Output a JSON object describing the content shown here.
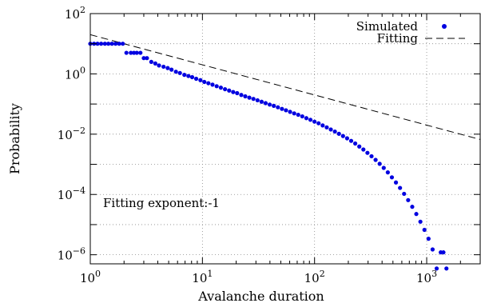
{
  "chart_data": {
    "type": "scatter",
    "title": "",
    "xlabel": "Avalanche duration",
    "ylabel": "Probability",
    "xscale": "log",
    "yscale": "log",
    "xlim": [
      1,
      3000
    ],
    "ylim": [
      5e-07,
      100
    ],
    "grid": true,
    "legend_position": "top-right",
    "x_ticks": [
      {
        "value": 1,
        "base": "10",
        "exp": "0"
      },
      {
        "value": 10,
        "base": "10",
        "exp": "1"
      },
      {
        "value": 100,
        "base": "10",
        "exp": "2"
      },
      {
        "value": 1000,
        "base": "10",
        "exp": "3"
      }
    ],
    "y_ticks": [
      {
        "value": 100,
        "base": "10",
        "exp": "2"
      },
      {
        "value": 1,
        "base": "10",
        "exp": "0"
      },
      {
        "value": 0.01,
        "base": "10",
        "exp": "−2"
      },
      {
        "value": 0.0001,
        "base": "10",
        "exp": "−4"
      },
      {
        "value": 1e-06,
        "base": "10",
        "exp": "−6"
      }
    ],
    "annotation": "Fitting exponent:-1",
    "colors": {
      "simulated": "#0000e0",
      "fitting": "#000000"
    },
    "series": [
      {
        "name": "Simulated",
        "style": "points",
        "x": [
          1.0,
          1.08,
          1.16,
          1.25,
          1.35,
          1.45,
          1.56,
          1.68,
          1.81,
          1.95,
          2.1,
          2.3,
          2.45,
          2.6,
          2.8,
          3.0,
          3.2,
          3.5,
          3.8,
          4.1,
          4.5,
          4.9,
          5.3,
          5.8,
          6.3,
          6.9,
          7.5,
          8.1,
          8.8,
          9.6,
          10.4,
          11.3,
          12.3,
          13.4,
          14.6,
          15.9,
          17.3,
          18.8,
          20.4,
          22.2,
          24.1,
          26.2,
          28.5,
          31.0,
          33.7,
          36.6,
          39.8,
          43.3,
          47.1,
          51.2,
          55.6,
          60.5,
          65.8,
          71.5,
          77.7,
          84.5,
          91.9,
          99.9,
          108.6,
          118.1,
          128.4,
          139.6,
          151.8,
          165.0,
          179.4,
          195.0,
          212.0,
          230.5,
          250.6,
          272.5,
          296.2,
          322.1,
          350.2,
          380.7,
          413.9,
          450.0,
          489.2,
          531.9,
          578.3,
          628.7,
          683.5,
          743.1,
          807.9,
          878.4,
          955.0,
          1038.2,
          1128.8,
          1227.2,
          1334.2,
          1410.0,
          1500.0
        ],
        "y": [
          10.0,
          10.0,
          10.0,
          10.0,
          10.0,
          10.0,
          10.0,
          10.0,
          10.0,
          10.0,
          5.0,
          5.0,
          5.0,
          5.0,
          5.0,
          3.33,
          3.33,
          2.5,
          2.22,
          1.9,
          1.73,
          1.56,
          1.38,
          1.18,
          1.07,
          0.93,
          0.85,
          0.78,
          0.69,
          0.62,
          0.54,
          0.49,
          0.44,
          0.39,
          0.35,
          0.31,
          0.28,
          0.25,
          0.23,
          0.2,
          0.18,
          0.163,
          0.148,
          0.133,
          0.119,
          0.107,
          0.096,
          0.087,
          0.078,
          0.069,
          0.062,
          0.055,
          0.049,
          0.044,
          0.039,
          0.034,
          0.03,
          0.026,
          0.023,
          0.0195,
          0.0168,
          0.0143,
          0.0122,
          0.0103,
          0.0087,
          0.0073,
          0.006,
          0.0049,
          0.0039,
          0.0031,
          0.0024,
          0.00185,
          0.0014,
          0.00104,
          0.00076,
          0.00054,
          0.00037,
          0.00025,
          0.000165,
          0.000105,
          6.5e-05,
          3.9e-05,
          2.25e-05,
          1.25e-05,
          6.7e-06,
          3.4e-06,
          1.5e-06,
          3.5e-07,
          1.2e-06,
          1.2e-06,
          3.5e-07
        ]
      },
      {
        "name": "Fitting",
        "style": "dashed-line",
        "x": [
          1,
          3000
        ],
        "y": [
          20,
          0.006667
        ]
      }
    ]
  }
}
